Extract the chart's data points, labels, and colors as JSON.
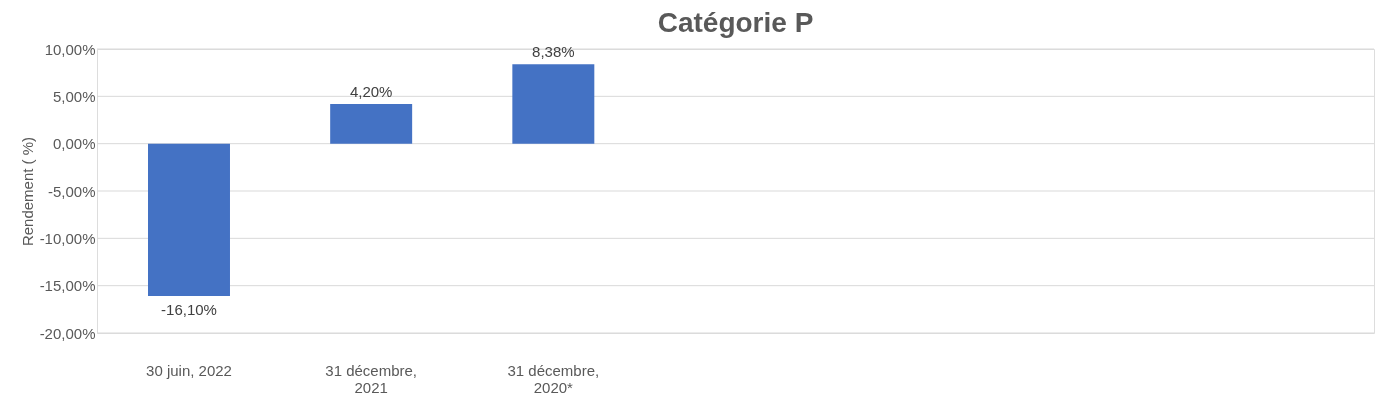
{
  "chart_data": {
    "type": "bar",
    "title": "Catégorie P",
    "ylabel": "Rendement ( %)",
    "categories": [
      "30 juin, 2022",
      "31 décembre, 2021",
      "31 décembre, 2020*",
      null,
      null,
      null,
      null
    ],
    "values": [
      -16.1,
      4.2,
      8.38,
      null,
      null,
      null,
      null
    ],
    "value_labels": [
      "-16,10%",
      "4,20%",
      "8,38%",
      null,
      null,
      null,
      null
    ],
    "color": "#4472c4",
    "ylim": [
      -20,
      10
    ],
    "yticks": [
      {
        "value": -20,
        "label": "-20,00%"
      },
      {
        "value": -15,
        "label": "-15,00%"
      },
      {
        "value": -10,
        "label": "-10,00%"
      },
      {
        "value": -5,
        "label": "-5,00%"
      },
      {
        "value": 0,
        "label": "0,00%"
      },
      {
        "value": 5,
        "label": "5,00%"
      },
      {
        "value": 10,
        "label": "10,00%"
      }
    ],
    "grid": "y"
  }
}
